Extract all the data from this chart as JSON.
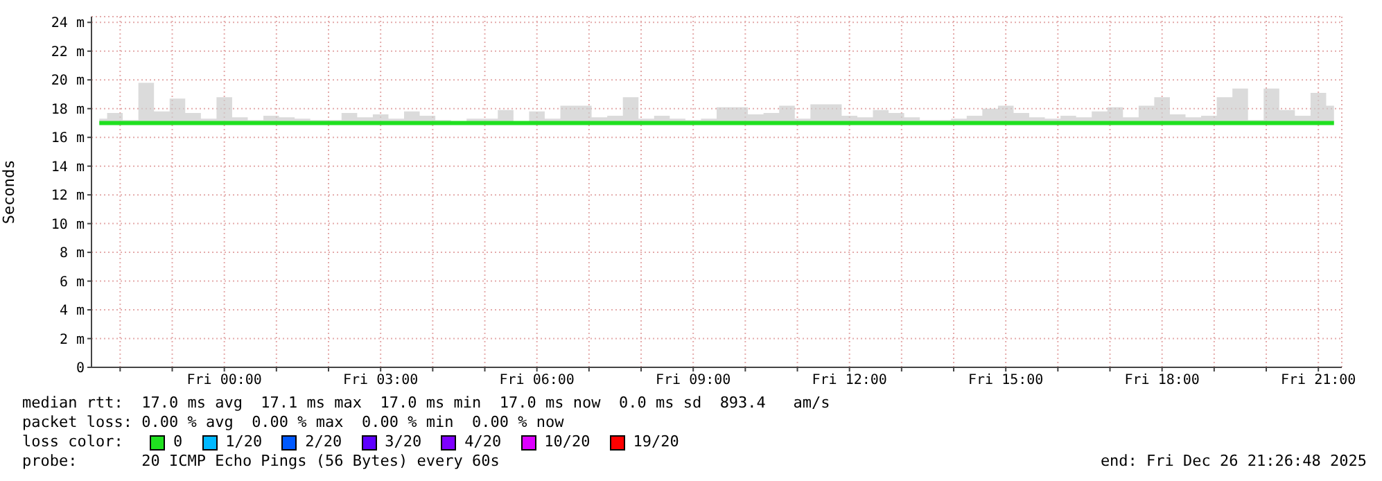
{
  "chart_data": {
    "type": "line",
    "ylabel": "Seconds",
    "x": [
      "2025-12-25T21:36",
      "2025-12-25T21:54",
      "2025-12-25T22:12",
      "2025-12-25T22:30",
      "2025-12-25T22:48",
      "2025-12-25T23:06",
      "2025-12-25T23:24",
      "2025-12-25T23:42",
      "2025-12-26T00:00",
      "2025-12-26T00:18",
      "2025-12-26T00:36",
      "2025-12-26T00:54",
      "2025-12-26T01:12",
      "2025-12-26T01:30",
      "2025-12-26T01:48",
      "2025-12-26T02:06",
      "2025-12-26T02:24",
      "2025-12-26T02:42",
      "2025-12-26T03:00",
      "2025-12-26T03:18",
      "2025-12-26T03:36",
      "2025-12-26T03:54",
      "2025-12-26T04:12",
      "2025-12-26T04:30",
      "2025-12-26T04:48",
      "2025-12-26T05:06",
      "2025-12-26T05:24",
      "2025-12-26T05:42",
      "2025-12-26T06:00",
      "2025-12-26T06:18",
      "2025-12-26T06:36",
      "2025-12-26T06:54",
      "2025-12-26T07:12",
      "2025-12-26T07:30",
      "2025-12-26T07:48",
      "2025-12-26T08:06",
      "2025-12-26T08:24",
      "2025-12-26T08:42",
      "2025-12-26T09:00",
      "2025-12-26T09:18",
      "2025-12-26T09:36",
      "2025-12-26T09:54",
      "2025-12-26T10:12",
      "2025-12-26T10:30",
      "2025-12-26T10:48",
      "2025-12-26T11:06",
      "2025-12-26T11:24",
      "2025-12-26T11:42",
      "2025-12-26T12:00",
      "2025-12-26T12:18",
      "2025-12-26T12:36",
      "2025-12-26T12:54",
      "2025-12-26T13:12",
      "2025-12-26T13:30",
      "2025-12-26T13:48",
      "2025-12-26T14:06",
      "2025-12-26T14:24",
      "2025-12-26T14:42",
      "2025-12-26T15:00",
      "2025-12-26T15:18",
      "2025-12-26T15:36",
      "2025-12-26T15:54",
      "2025-12-26T16:12",
      "2025-12-26T16:30",
      "2025-12-26T16:48",
      "2025-12-26T17:06",
      "2025-12-26T17:24",
      "2025-12-26T17:42",
      "2025-12-26T18:00",
      "2025-12-26T18:18",
      "2025-12-26T18:36",
      "2025-12-26T18:54",
      "2025-12-26T19:12",
      "2025-12-26T19:30",
      "2025-12-26T19:48",
      "2025-12-26T20:06",
      "2025-12-26T20:24",
      "2025-12-26T20:42",
      "2025-12-26T21:00",
      "2025-12-26T21:18"
    ],
    "series": [
      {
        "name": "0",
        "color": "#20e020",
        "values": [
          17,
          17,
          17,
          17,
          17,
          17,
          17,
          17,
          17,
          17,
          17,
          17,
          17,
          17,
          17,
          17,
          17,
          17,
          17,
          17,
          17,
          17,
          17,
          17,
          17,
          17,
          17,
          17,
          17,
          17,
          17,
          17,
          17,
          17,
          17,
          17,
          17,
          17,
          17,
          17,
          17,
          17,
          17,
          17,
          17,
          17,
          17,
          17,
          17,
          17,
          17,
          17,
          17,
          17,
          17,
          17,
          17,
          17,
          17,
          17,
          17,
          17,
          17,
          17,
          17,
          17,
          17,
          17,
          17,
          17,
          17,
          17,
          17,
          17,
          17,
          17,
          17,
          17,
          17,
          17
        ],
        "lower": [
          16.9,
          16.9,
          16.9,
          16.9,
          16.9,
          16.9,
          16.9,
          16.9,
          16.9,
          16.9,
          16.9,
          16.9,
          16.9,
          16.9,
          16.9,
          16.9,
          16.9,
          16.9,
          16.9,
          16.9,
          16.9,
          16.9,
          16.9,
          16.9,
          16.9,
          16.9,
          16.9,
          16.9,
          16.9,
          16.9,
          16.9,
          16.9,
          16.9,
          16.9,
          16.9,
          16.9,
          16.9,
          16.9,
          16.9,
          16.9,
          16.9,
          16.9,
          16.9,
          16.9,
          16.9,
          16.9,
          16.9,
          16.9,
          16.9,
          16.9,
          16.9,
          16.9,
          16.9,
          16.9,
          16.9,
          16.9,
          16.9,
          16.9,
          16.9,
          16.9,
          16.9,
          16.9,
          16.9,
          16.9,
          16.9,
          16.9,
          16.9,
          16.9,
          16.9,
          16.9,
          16.9,
          16.9,
          16.9,
          16.9,
          16.9,
          16.9,
          16.9,
          16.9,
          16.9,
          16.9
        ],
        "upper": [
          17.3,
          17.7,
          17.2,
          19.8,
          17.8,
          18.7,
          17.7,
          17.3,
          18.8,
          17.4,
          17.2,
          17.5,
          17.4,
          17.3,
          17.2,
          17.2,
          17.7,
          17.4,
          17.6,
          17.3,
          17.8,
          17.5,
          17.2,
          17.1,
          17.3,
          17.3,
          17.9,
          17.1,
          17.8,
          17.3,
          18.2,
          18.2,
          17.4,
          17.5,
          18.8,
          17.3,
          17.5,
          17.3,
          17.2,
          17.3,
          18.1,
          18.1,
          17.6,
          17.7,
          18.2,
          17.3,
          18.3,
          18.3,
          17.5,
          17.4,
          17.9,
          17.7,
          17.4,
          17.2,
          17.2,
          17.3,
          17.5,
          18,
          18.2,
          17.7,
          17.4,
          17.3,
          17.5,
          17.4,
          17.8,
          18.1,
          17.4,
          18.2,
          18.8,
          17.6,
          17.4,
          17.5,
          18.8,
          19.4,
          17.2,
          19.4,
          17.9,
          17.5,
          19.1,
          18.2
        ]
      },
      {
        "name": "1/20",
        "color": "#00b8ff",
        "values": [
          null,
          null,
          null,
          null,
          null,
          null,
          null,
          null,
          null,
          null,
          null,
          null,
          null,
          null,
          null,
          null,
          null,
          null,
          null,
          null,
          null,
          null,
          null,
          null,
          null,
          null,
          null,
          null,
          null,
          null,
          null,
          null,
          null,
          null,
          null,
          null,
          null,
          null,
          null,
          null,
          null,
          null,
          null,
          null,
          null,
          null,
          null,
          null,
          null,
          null,
          null,
          null,
          null,
          null,
          null,
          null,
          null,
          null,
          null,
          null,
          null,
          null,
          null,
          null,
          null,
          null,
          null,
          null,
          null,
          null,
          null,
          null,
          null,
          null,
          null,
          null,
          null,
          null,
          null,
          null
        ]
      },
      {
        "name": "2/20",
        "color": "#0059ff",
        "values": [
          null,
          null,
          null,
          null,
          null,
          null,
          null,
          null,
          null,
          null,
          null,
          null,
          null,
          null,
          null,
          null,
          null,
          null,
          null,
          null,
          null,
          null,
          null,
          null,
          null,
          null,
          null,
          null,
          null,
          null,
          null,
          null,
          null,
          null,
          null,
          null,
          null,
          null,
          null,
          null,
          null,
          null,
          null,
          null,
          null,
          null,
          null,
          null,
          null,
          null,
          null,
          null,
          null,
          null,
          null,
          null,
          null,
          null,
          null,
          null,
          null,
          null,
          null,
          null,
          null,
          null,
          null,
          null,
          null,
          null,
          null,
          null,
          null,
          null,
          null,
          null,
          null,
          null,
          null,
          null
        ]
      },
      {
        "name": "3/20",
        "color": "#5e00ff",
        "values": [
          null,
          null,
          null,
          null,
          null,
          null,
          null,
          null,
          null,
          null,
          null,
          null,
          null,
          null,
          null,
          null,
          null,
          null,
          null,
          null,
          null,
          null,
          null,
          null,
          null,
          null,
          null,
          null,
          null,
          null,
          null,
          null,
          null,
          null,
          null,
          null,
          null,
          null,
          null,
          null,
          null,
          null,
          null,
          null,
          null,
          null,
          null,
          null,
          null,
          null,
          null,
          null,
          null,
          null,
          null,
          null,
          null,
          null,
          null,
          null,
          null,
          null,
          null,
          null,
          null,
          null,
          null,
          null,
          null,
          null,
          null,
          null,
          null,
          null,
          null,
          null,
          null,
          null,
          null,
          null
        ]
      },
      {
        "name": "4/20",
        "color": "#7e00ff",
        "values": [
          null,
          null,
          null,
          null,
          null,
          null,
          null,
          null,
          null,
          null,
          null,
          null,
          null,
          null,
          null,
          null,
          null,
          null,
          null,
          null,
          null,
          null,
          null,
          null,
          null,
          null,
          null,
          null,
          null,
          null,
          null,
          null,
          null,
          null,
          null,
          null,
          null,
          null,
          null,
          null,
          null,
          null,
          null,
          null,
          null,
          null,
          null,
          null,
          null,
          null,
          null,
          null,
          null,
          null,
          null,
          null,
          null,
          null,
          null,
          null,
          null,
          null,
          null,
          null,
          null,
          null,
          null,
          null,
          null,
          null,
          null,
          null,
          null,
          null,
          null,
          null,
          null,
          null,
          null,
          null
        ]
      },
      {
        "name": "10/20",
        "color": "#dd00ff",
        "values": [
          null,
          null,
          null,
          null,
          null,
          null,
          null,
          null,
          null,
          null,
          null,
          null,
          null,
          null,
          null,
          null,
          null,
          null,
          null,
          null,
          null,
          null,
          null,
          null,
          null,
          null,
          null,
          null,
          null,
          null,
          null,
          null,
          null,
          null,
          null,
          null,
          null,
          null,
          null,
          null,
          null,
          null,
          null,
          null,
          null,
          null,
          null,
          null,
          null,
          null,
          null,
          null,
          null,
          null,
          null,
          null,
          null,
          null,
          null,
          null,
          null,
          null,
          null,
          null,
          null,
          null,
          null,
          null,
          null,
          null,
          null,
          null,
          null,
          null,
          null,
          null,
          null,
          null,
          null,
          null
        ]
      },
      {
        "name": "19/20",
        "color": "#ff0000",
        "values": [
          null,
          null,
          null,
          null,
          null,
          null,
          null,
          null,
          null,
          null,
          null,
          null,
          null,
          null,
          null,
          null,
          null,
          null,
          null,
          null,
          null,
          null,
          null,
          null,
          null,
          null,
          null,
          null,
          null,
          null,
          null,
          null,
          null,
          null,
          null,
          null,
          null,
          null,
          null,
          null,
          null,
          null,
          null,
          null,
          null,
          null,
          null,
          null,
          null,
          null,
          null,
          null,
          null,
          null,
          null,
          null,
          null,
          null,
          null,
          null,
          null,
          null,
          null,
          null,
          null,
          null,
          null,
          null,
          null,
          null,
          null,
          null,
          null,
          null,
          null,
          null,
          null,
          null,
          null,
          null
        ]
      }
    ],
    "legend": "bottom",
    "legend_title": "loss color:",
    "xlim": [
      "2025-12-25T21:27",
      "2025-12-26T21:27"
    ],
    "xticks": [
      {
        "value": "2025-12-25T22:00",
        "label": null
      },
      {
        "value": "2025-12-25T23:00",
        "label": null
      },
      {
        "value": "2025-12-26T00:00",
        "label": "Fri 00:00"
      },
      {
        "value": "2025-12-26T01:00",
        "label": null
      },
      {
        "value": "2025-12-26T02:00",
        "label": null
      },
      {
        "value": "2025-12-26T03:00",
        "label": "Fri 03:00"
      },
      {
        "value": "2025-12-26T04:00",
        "label": null
      },
      {
        "value": "2025-12-26T05:00",
        "label": null
      },
      {
        "value": "2025-12-26T06:00",
        "label": "Fri 06:00"
      },
      {
        "value": "2025-12-26T07:00",
        "label": null
      },
      {
        "value": "2025-12-26T08:00",
        "label": null
      },
      {
        "value": "2025-12-26T09:00",
        "label": "Fri 09:00"
      },
      {
        "value": "2025-12-26T10:00",
        "label": null
      },
      {
        "value": "2025-12-26T11:00",
        "label": null
      },
      {
        "value": "2025-12-26T12:00",
        "label": "Fri 12:00"
      },
      {
        "value": "2025-12-26T13:00",
        "label": null
      },
      {
        "value": "2025-12-26T14:00",
        "label": null
      },
      {
        "value": "2025-12-26T15:00",
        "label": "Fri 15:00"
      },
      {
        "value": "2025-12-26T16:00",
        "label": null
      },
      {
        "value": "2025-12-26T17:00",
        "label": null
      },
      {
        "value": "2025-12-26T18:00",
        "label": "Fri 18:00"
      },
      {
        "value": "2025-12-26T19:00",
        "label": null
      },
      {
        "value": "2025-12-26T20:00",
        "label": null
      },
      {
        "value": "2025-12-26T21:00",
        "label": "Fri 21:00"
      }
    ],
    "ylim": [
      0,
      24.4
    ],
    "yticks": [
      0,
      {
        "value": 2,
        "label": "2 m"
      },
      {
        "value": 4,
        "label": "4 m"
      },
      {
        "value": 6,
        "label": "6 m"
      },
      {
        "value": 8,
        "label": "8 m"
      },
      {
        "value": 10,
        "label": "10 m"
      },
      {
        "value": 12,
        "label": "12 m"
      },
      {
        "value": 14,
        "label": "14 m"
      },
      {
        "value": 16,
        "label": "16 m"
      },
      {
        "value": 18,
        "label": "18 m"
      },
      {
        "value": 20,
        "label": "20 m"
      },
      {
        "value": 22,
        "label": "22 m"
      },
      {
        "value": 24,
        "label": "24 m"
      }
    ],
    "grid": true,
    "marker": "none",
    "line_style": "solid",
    "annotations": [
      "median rtt:  17.0 ms avg  17.1 ms max  17.0 ms min  17.0 ms now  0.0 ms sd  893.4   am/s",
      "packet loss: 0.00 % avg  0.00 % max  0.00 % min  0.00 % now",
      "probe:       20 ICMP Echo Pings (56 Bytes) every 60s",
      "end: Fri Dec 26 21:26:48 2025"
    ]
  }
}
